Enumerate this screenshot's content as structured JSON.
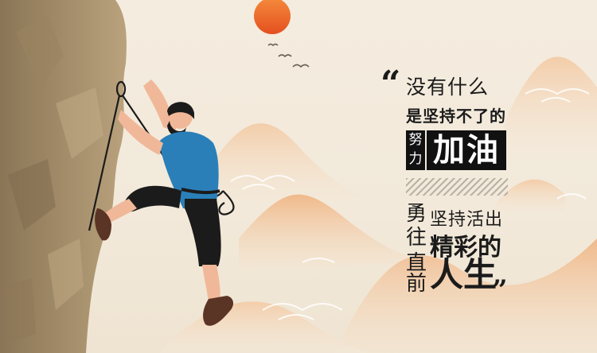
{
  "quote": {
    "open_mark": "“",
    "close_mark": "”",
    "line1": "没有什么",
    "line2": "是坚持不了的",
    "line3_small_top": "努",
    "line3_small_bottom": "力",
    "line3_big": "加油",
    "line4_col_top": "勇",
    "line4_col_2": "往",
    "line4_col_3": "直",
    "line4_col_4": "前",
    "line5": "坚持活出",
    "line6": "精彩的",
    "line7": "人生"
  },
  "palette": {
    "background": "#f2e9da",
    "sun": "#f06b2a",
    "mountain": "#f0c9a0",
    "cliff": "#a08b68",
    "shirt": "#2a7fb8",
    "pants": "#1b1b1b",
    "text": "#1b1b1b"
  },
  "illustration": {
    "subject": "rock-climber-on-cliff",
    "elements": [
      "sun-icon",
      "birds-icon",
      "mountains",
      "clouds",
      "cliff",
      "rope",
      "climber"
    ]
  }
}
